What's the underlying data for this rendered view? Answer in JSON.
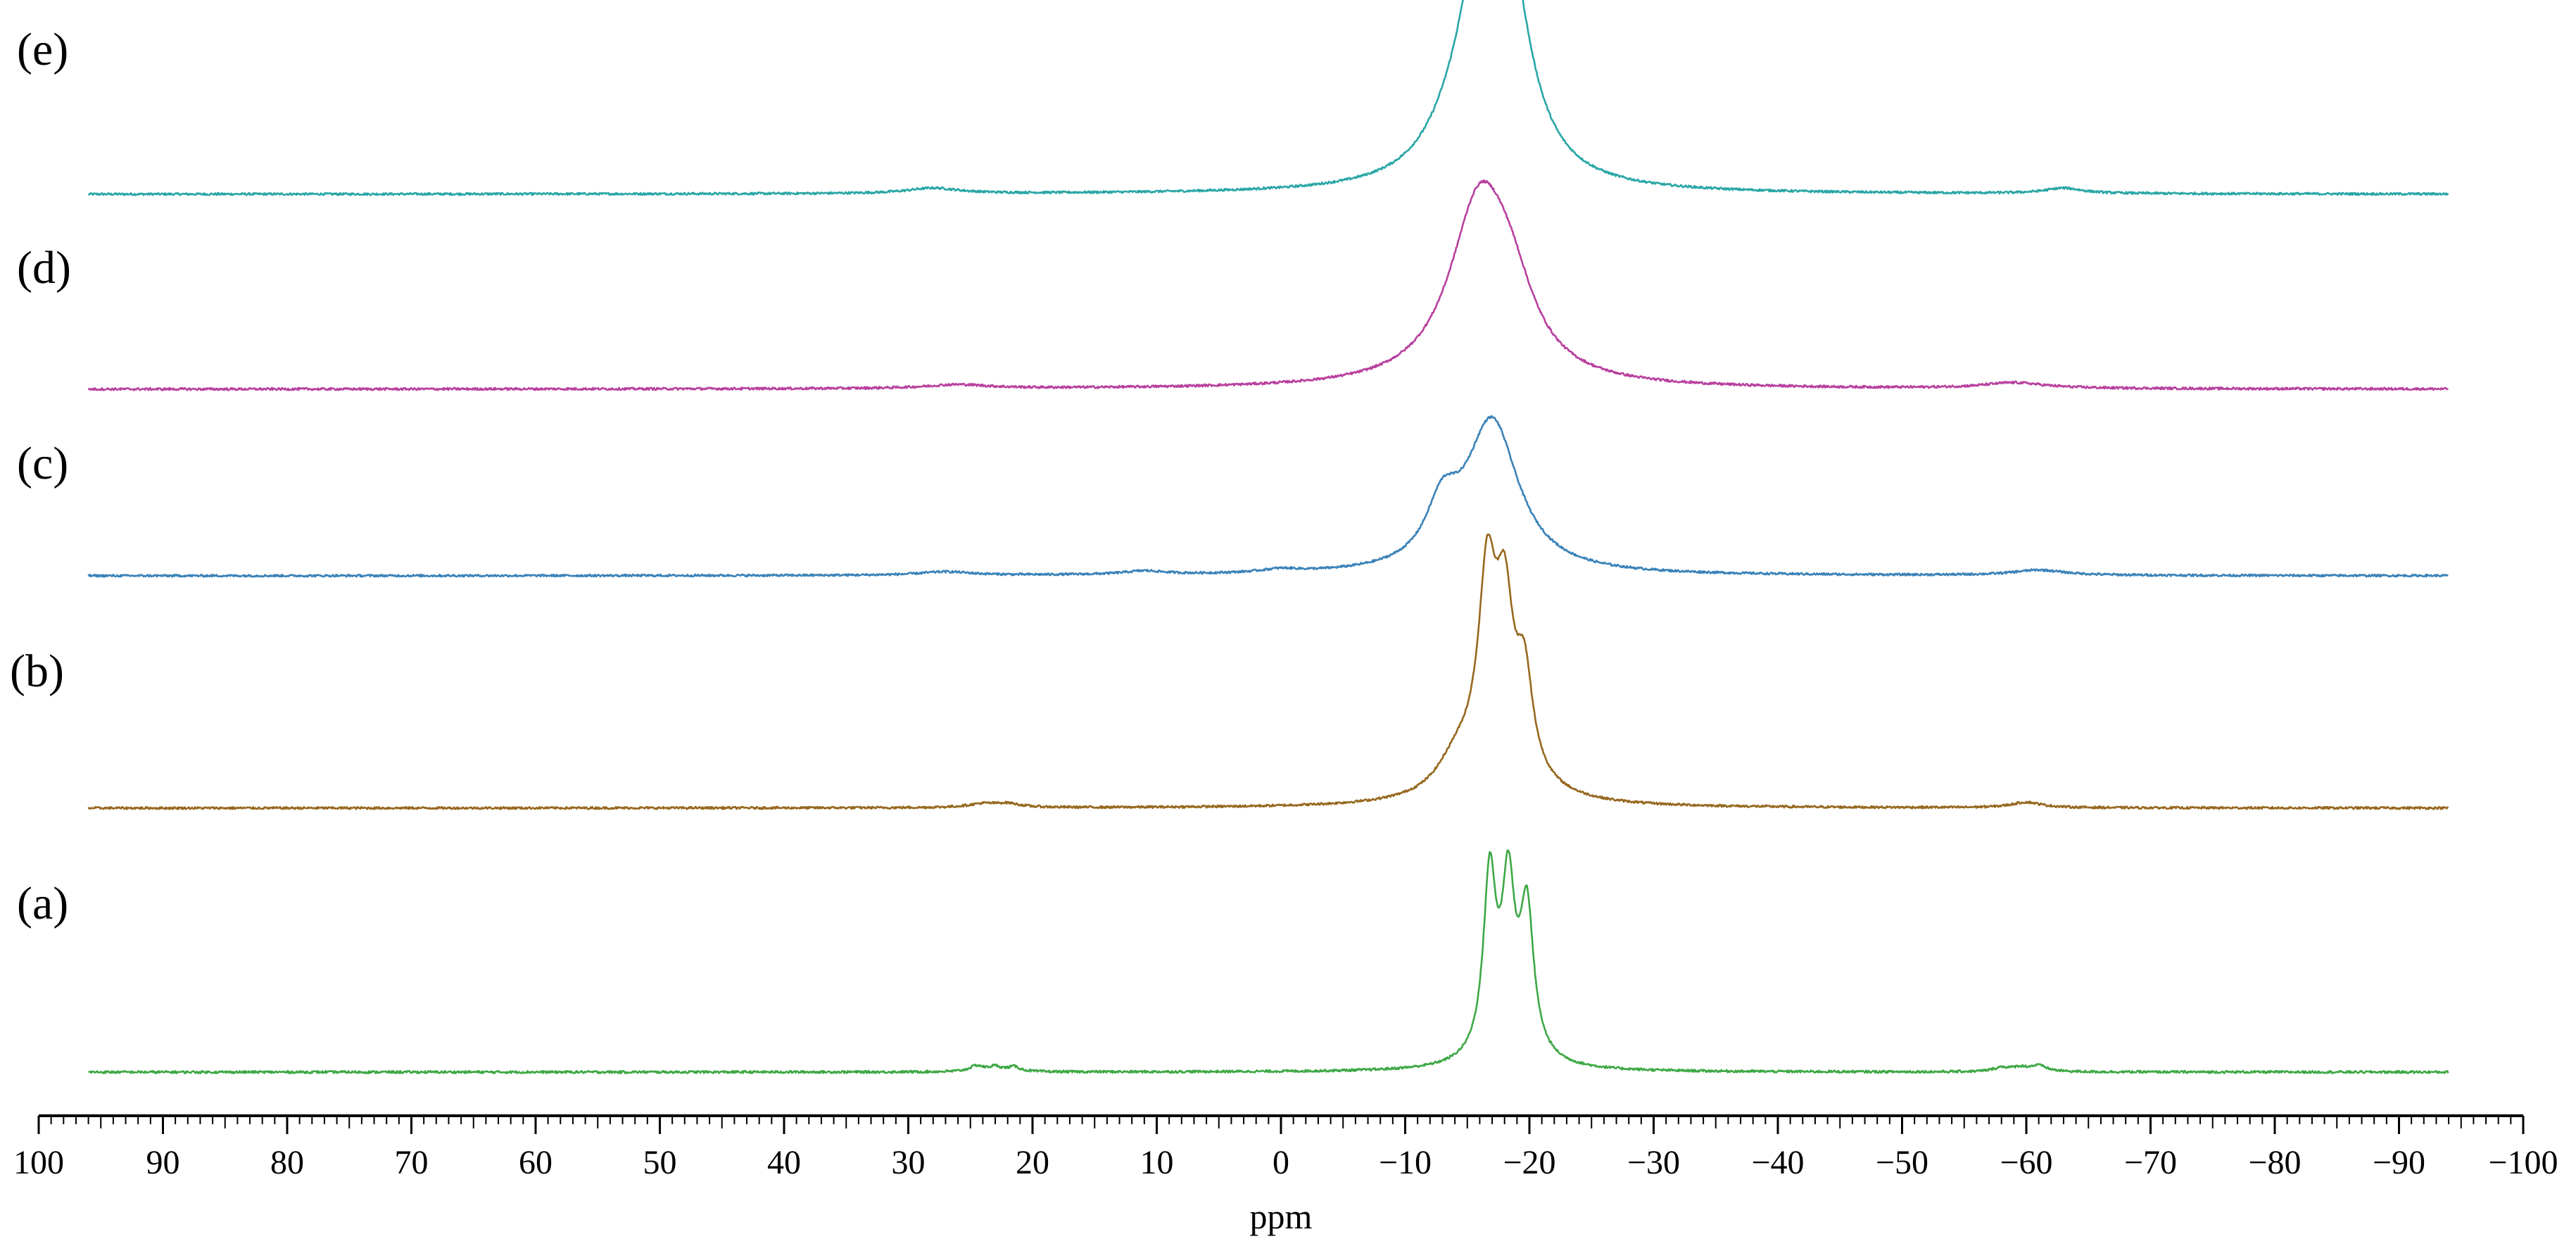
{
  "chart_data": {
    "type": "line",
    "xlabel": "ppm",
    "xlim": [
      100,
      -100
    ],
    "x_reversed": true,
    "grid": false,
    "tick_values": [
      100,
      90,
      80,
      70,
      60,
      50,
      40,
      30,
      20,
      10,
      0,
      -10,
      -20,
      -30,
      -40,
      -50,
      -60,
      -70,
      -80,
      -90,
      -100
    ],
    "tick_labels": [
      "100",
      "90",
      "80",
      "70",
      "60",
      "50",
      "40",
      "30",
      "20",
      "10",
      "0",
      "−10",
      "−20",
      "−30",
      "−40",
      "−50",
      "−60",
      "−70",
      "−80",
      "−90",
      "−100"
    ],
    "x_range_plotted": [
      96,
      -94
    ],
    "series": [
      {
        "name": "(e)",
        "color": "#2aa6a6",
        "peaks": [
          {
            "center": -16.2,
            "height": 1.0,
            "width": 2.2
          },
          {
            "center": -18.2,
            "height": 0.98,
            "width": 2.2
          },
          {
            "center": -14.0,
            "height": 0.15,
            "width": 3.0
          },
          {
            "center": 28.0,
            "height": 0.03,
            "width": 2.5
          },
          {
            "center": -63.0,
            "height": 0.03,
            "width": 1.8
          }
        ]
      },
      {
        "name": "(d)",
        "color": "#b8409e",
        "peaks": [
          {
            "center": -16.0,
            "height": 0.94,
            "width": 3.0
          },
          {
            "center": -18.5,
            "height": 0.3,
            "width": 2.4
          },
          {
            "center": 26.0,
            "height": 0.02,
            "width": 3.0
          },
          {
            "center": -59.0,
            "height": 0.03,
            "width": 3.0
          }
        ]
      },
      {
        "name": "(c)",
        "color": "#3a82b8",
        "peaks": [
          {
            "center": -17.0,
            "height": 0.86,
            "width": 2.6
          },
          {
            "center": -13.0,
            "height": 0.3,
            "width": 1.6
          },
          {
            "center": 27.0,
            "height": 0.02,
            "width": 2.5
          },
          {
            "center": 11.0,
            "height": 0.02,
            "width": 2.0
          },
          {
            "center": 0.0,
            "height": 0.02,
            "width": 2.0
          },
          {
            "center": -61.0,
            "height": 0.03,
            "width": 2.5
          }
        ]
      },
      {
        "name": "(b)",
        "color": "#96681f",
        "peaks": [
          {
            "center": -16.6,
            "height": 0.86,
            "width": 0.8
          },
          {
            "center": -18.0,
            "height": 0.7,
            "width": 0.8
          },
          {
            "center": -19.6,
            "height": 0.49,
            "width": 0.8
          },
          {
            "center": -17.2,
            "height": 0.4,
            "width": 2.6
          },
          {
            "center": -14.0,
            "height": 0.13,
            "width": 1.8
          },
          {
            "center": 24.0,
            "height": 0.02,
            "width": 1.5
          },
          {
            "center": 22.0,
            "height": 0.02,
            "width": 1.2
          },
          {
            "center": -60.0,
            "height": 0.03,
            "width": 1.5
          }
        ]
      },
      {
        "name": "(a)",
        "color": "#3ea845",
        "peaks": [
          {
            "center": -16.8,
            "height": 0.86,
            "width": 0.6
          },
          {
            "center": -18.3,
            "height": 0.72,
            "width": 0.6
          },
          {
            "center": -19.8,
            "height": 0.7,
            "width": 0.65
          },
          {
            "center": -18.2,
            "height": 0.18,
            "width": 2.0
          },
          {
            "center": 24.5,
            "height": 0.03,
            "width": 0.7
          },
          {
            "center": 23.0,
            "height": 0.025,
            "width": 0.6
          },
          {
            "center": 21.5,
            "height": 0.025,
            "width": 0.6
          },
          {
            "center": -58.0,
            "height": 0.02,
            "width": 0.8
          },
          {
            "center": -59.5,
            "height": 0.02,
            "width": 0.8
          },
          {
            "center": -61.0,
            "height": 0.03,
            "width": 0.8
          }
        ]
      }
    ]
  }
}
